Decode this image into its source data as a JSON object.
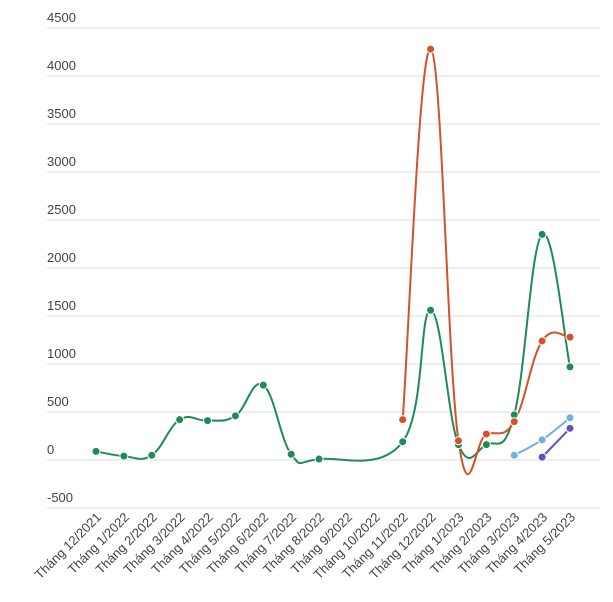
{
  "chart_data": {
    "type": "line",
    "title": "",
    "xlabel": "",
    "ylabel": "",
    "ylim": [
      -500,
      4500
    ],
    "yticks": [
      4500,
      4000,
      3500,
      3000,
      2500,
      2000,
      1500,
      1000,
      500,
      0,
      -500
    ],
    "grid": true,
    "smooth": true,
    "categories": [
      "Tháng 12/2021",
      "Tháng 1/2022",
      "Tháng 2/2022",
      "Tháng 3/2022",
      "Tháng 4/2022",
      "Tháng 5/2022",
      "Tháng 6/2022",
      "Tháng 7/2022",
      "Tháng 8/2022",
      "Tháng 9/2022",
      "Tháng 10/2022",
      "Tháng 11/2022",
      "Tháng 12/2022",
      "Tháng 1/2023",
      "Tháng 2/2023",
      "Tháng 3/2023",
      "Tháng 4/2023",
      "Tháng 5/2023"
    ],
    "series": [
      {
        "color": "#1f8b55",
        "values": [
          90,
          40,
          50,
          420,
          410,
          460,
          780,
          60,
          10,
          null,
          null,
          190,
          1560,
          160,
          160,
          470,
          2350,
          970
        ]
      },
      {
        "color": "#d4522a",
        "values": [
          null,
          null,
          null,
          null,
          null,
          null,
          null,
          null,
          null,
          null,
          null,
          420,
          4280,
          200,
          270,
          400,
          1240,
          1280
        ]
      },
      {
        "color": "#6cb2de",
        "values": [
          null,
          null,
          null,
          null,
          null,
          null,
          null,
          null,
          null,
          null,
          null,
          null,
          null,
          null,
          null,
          50,
          210,
          440
        ]
      },
      {
        "color": "#6a4cc2",
        "values": [
          null,
          null,
          null,
          null,
          null,
          null,
          null,
          null,
          null,
          null,
          null,
          null,
          null,
          null,
          null,
          null,
          30,
          330
        ]
      }
    ]
  }
}
